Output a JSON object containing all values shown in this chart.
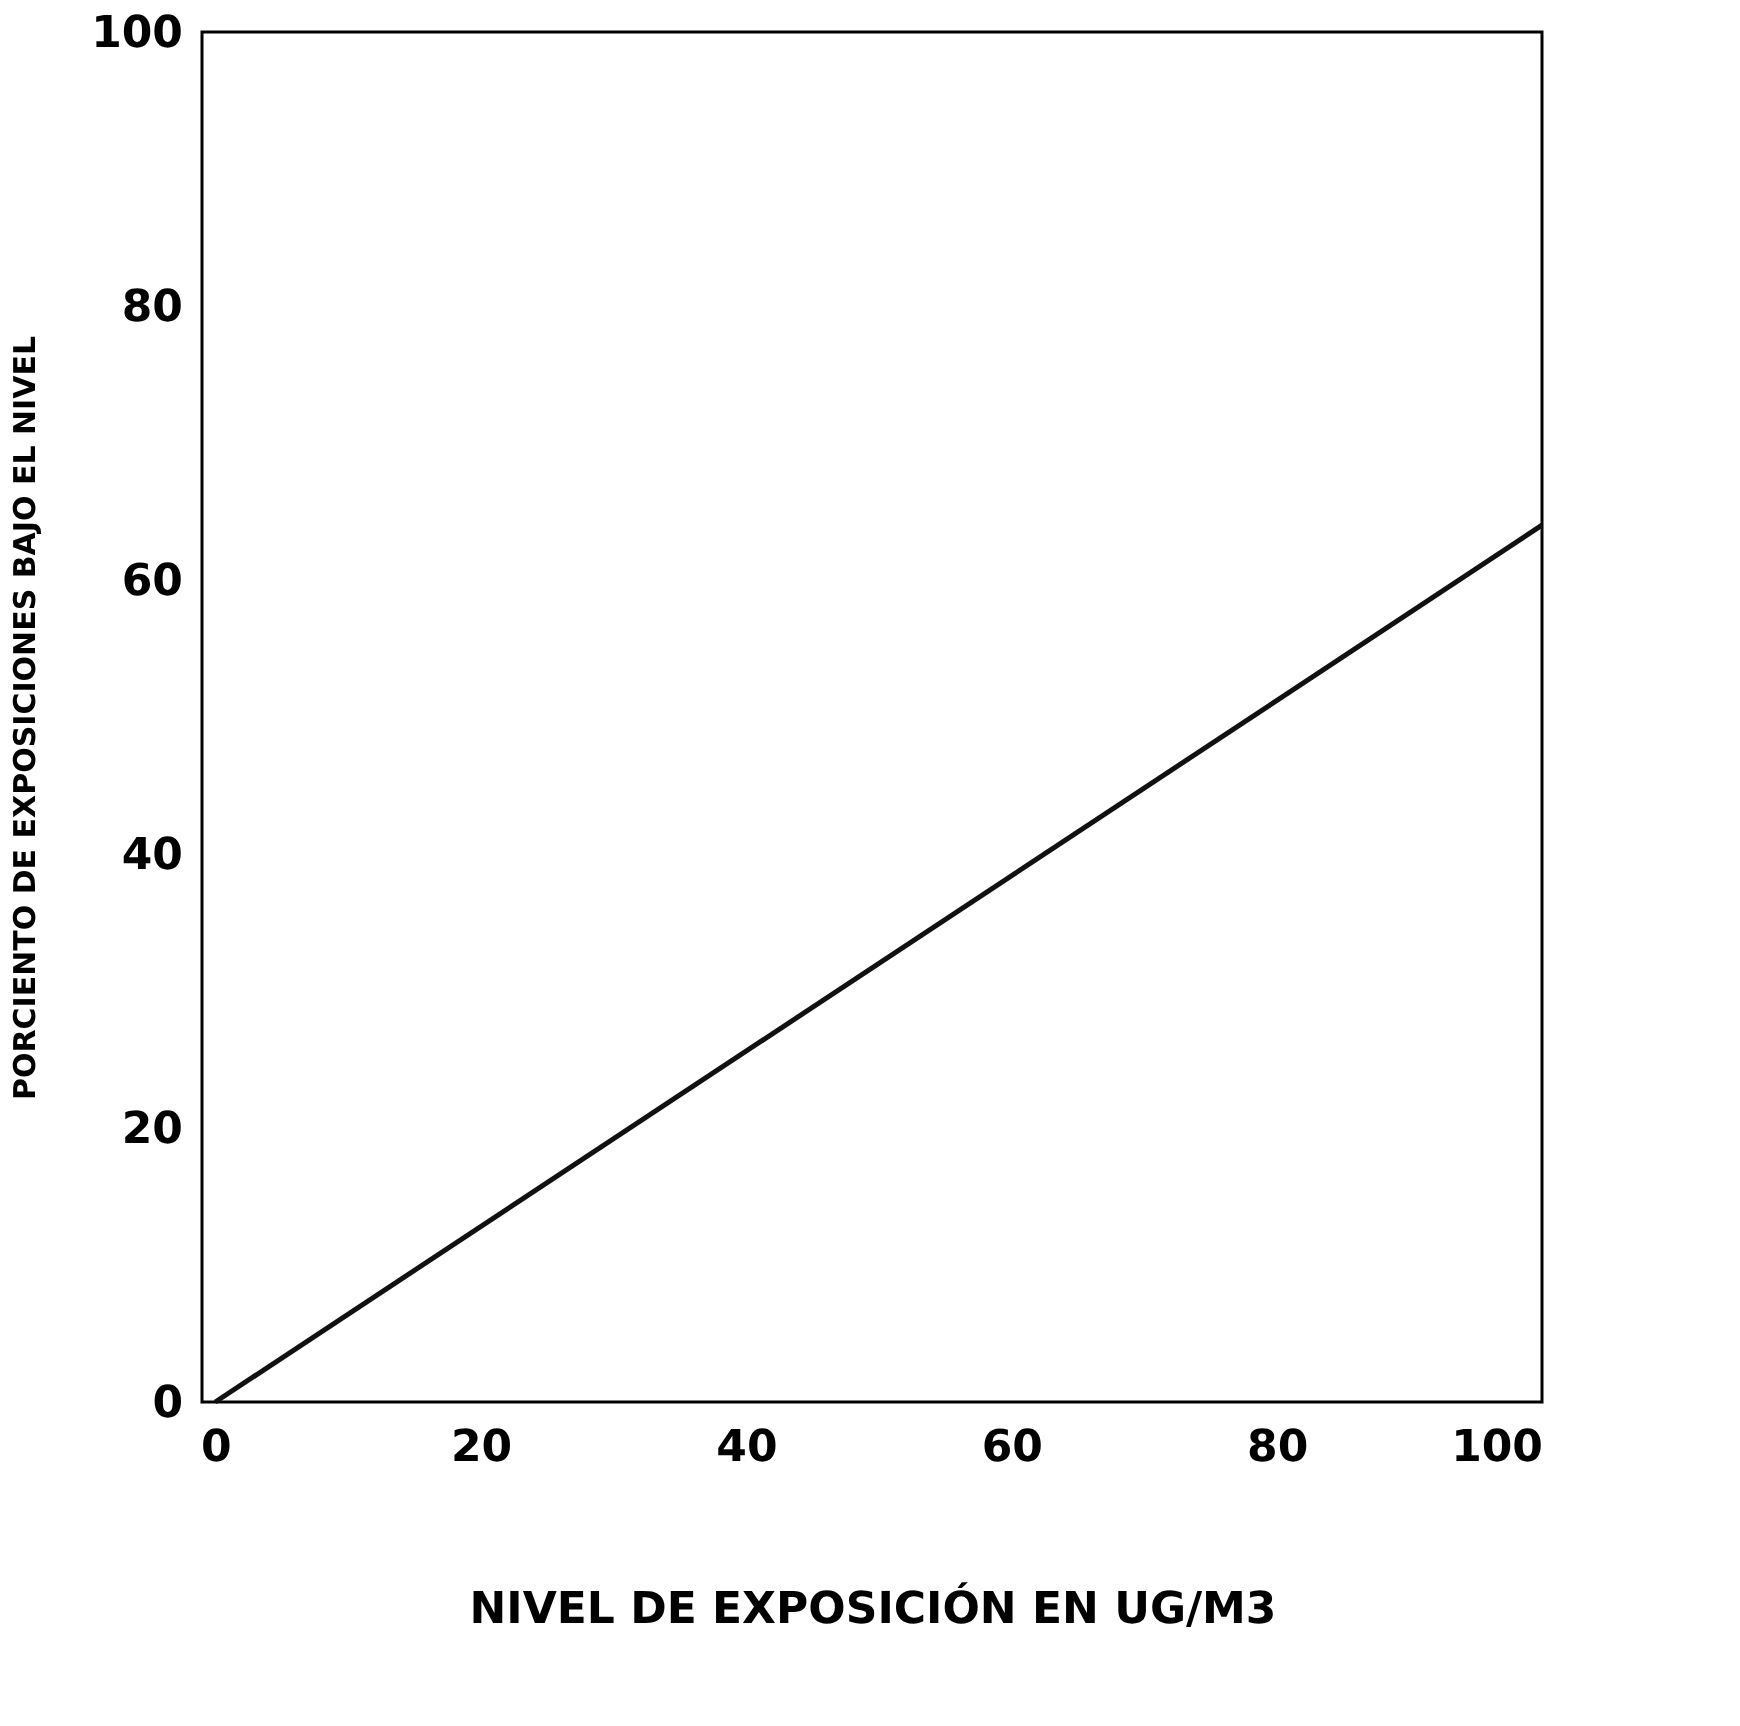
{
  "chart_data": {
    "type": "line",
    "xlabel": "NIVEL DE EXPOSICIÓN EN UG/M3",
    "ylabel": "PORCIENTO DE EXPOSICIONES BAJO EL NIVEL",
    "x": [
      0,
      100
    ],
    "series": [
      {
        "color": "#111111",
        "values": [
          0,
          64
        ]
      }
    ],
    "xlim": [
      -1,
      100
    ],
    "ylim": [
      0,
      100
    ],
    "xticks": [
      0,
      20,
      40,
      60,
      80,
      100
    ],
    "yticks": [
      0,
      20,
      40,
      60,
      80,
      100
    ],
    "grid": false,
    "legend": false,
    "marker": "none",
    "line_style": "solid"
  }
}
